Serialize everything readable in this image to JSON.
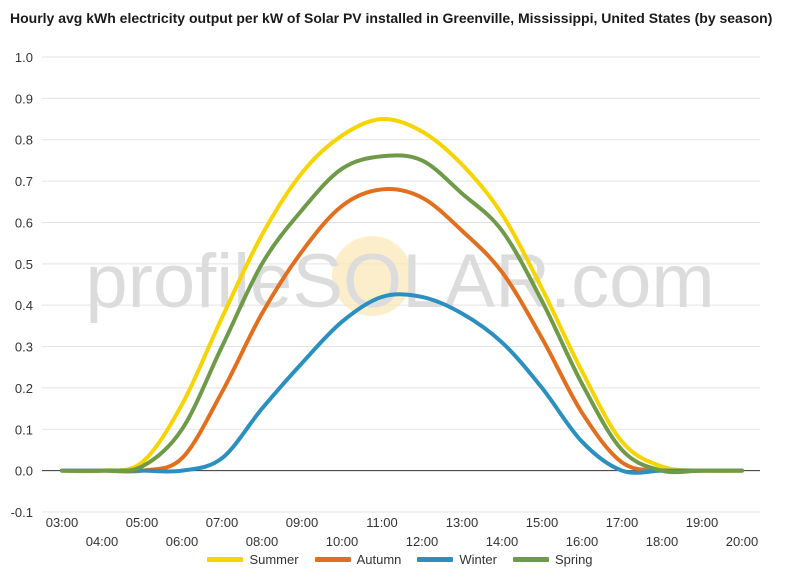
{
  "chart_data": {
    "type": "line",
    "title": "Hourly avg kWh electricity output per kW of Solar PV installed in Greenville, Mississippi, United States (by season)",
    "xlabel": "",
    "ylabel": "",
    "x": [
      "03:00",
      "04:00",
      "05:00",
      "06:00",
      "07:00",
      "08:00",
      "09:00",
      "10:00",
      "11:00",
      "12:00",
      "13:00",
      "14:00",
      "15:00",
      "16:00",
      "17:00",
      "18:00",
      "19:00",
      "20:00"
    ],
    "ylim": [
      -0.1,
      1.0
    ],
    "yticks": [
      "1.0",
      "0.9",
      "0.8",
      "0.7",
      "0.6",
      "0.5",
      "0.4",
      "0.3",
      "0.2",
      "0.1",
      "0.0",
      "-0.1"
    ],
    "grid": true,
    "legend_position": "bottom",
    "watermark": "profileSOLAR.com",
    "series": [
      {
        "name": "Summer",
        "color": "#f5d400",
        "values": [
          0.0,
          0.0,
          0.02,
          0.16,
          0.37,
          0.57,
          0.72,
          0.81,
          0.85,
          0.82,
          0.74,
          0.62,
          0.44,
          0.24,
          0.07,
          0.01,
          0.0,
          0.0
        ]
      },
      {
        "name": "Autumn",
        "color": "#e07020",
        "values": [
          0.0,
          0.0,
          0.0,
          0.03,
          0.19,
          0.38,
          0.53,
          0.64,
          0.68,
          0.66,
          0.58,
          0.48,
          0.32,
          0.14,
          0.02,
          0.0,
          0.0,
          0.0
        ]
      },
      {
        "name": "Winter",
        "color": "#2b8fbf",
        "values": [
          0.0,
          0.0,
          0.0,
          0.0,
          0.03,
          0.15,
          0.26,
          0.36,
          0.42,
          0.42,
          0.38,
          0.31,
          0.2,
          0.07,
          0.0,
          0.0,
          0.0,
          0.0
        ]
      },
      {
        "name": "Spring",
        "color": "#6e9a4a",
        "values": [
          0.0,
          0.0,
          0.01,
          0.1,
          0.3,
          0.5,
          0.63,
          0.73,
          0.76,
          0.75,
          0.67,
          0.58,
          0.41,
          0.21,
          0.05,
          0.0,
          0.0,
          0.0
        ]
      }
    ]
  }
}
